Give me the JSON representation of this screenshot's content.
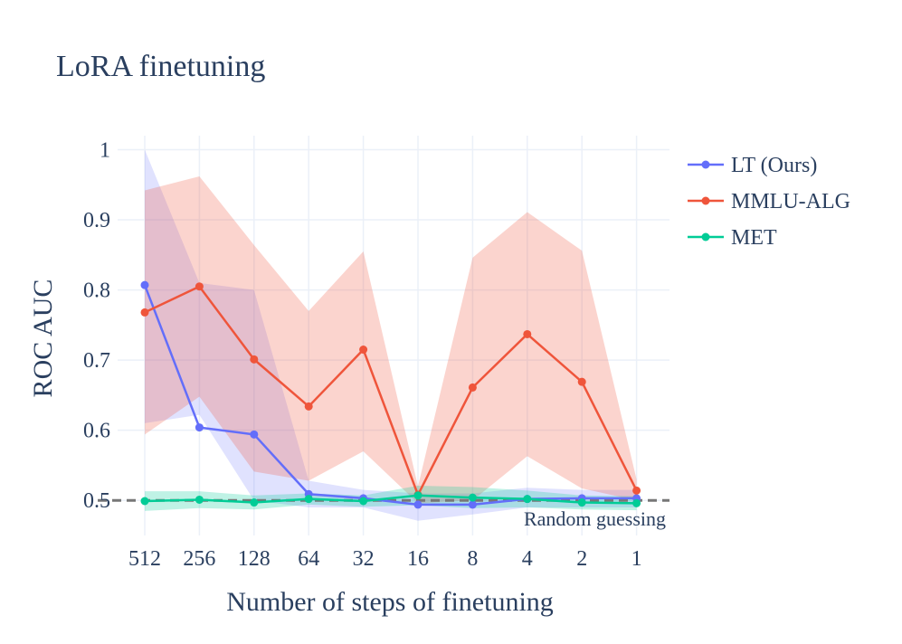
{
  "chart_data": {
    "type": "line",
    "title": "LoRA finetuning",
    "xlabel": "Number of steps of finetuning",
    "ylabel": "ROC AUC",
    "categories": [
      "512",
      "256",
      "128",
      "64",
      "32",
      "16",
      "8",
      "4",
      "2",
      "1"
    ],
    "ylim": [
      0.45,
      1.02
    ],
    "yticks": [
      0.5,
      0.6,
      0.7,
      0.8,
      0.9,
      1
    ],
    "ytick_labels": [
      "0.5",
      "0.6",
      "0.7",
      "0.8",
      "0.9",
      "1"
    ],
    "grid": true,
    "legend_position": "top-right",
    "series": [
      {
        "name": "LT (Ours)",
        "color": "#636efa",
        "values": [
          0.807,
          0.604,
          0.594,
          0.509,
          0.503,
          0.494,
          0.494,
          0.502,
          0.503,
          0.503
        ],
        "upper": [
          1.0,
          0.81,
          0.8,
          0.528,
          0.515,
          0.51,
          0.51,
          0.518,
          0.515,
          0.515
        ],
        "lower": [
          0.61,
          0.622,
          0.5,
          0.49,
          0.49,
          0.471,
          0.48,
          0.49,
          0.49,
          0.49
        ]
      },
      {
        "name": "MMLU-ALG",
        "color": "#ef553b",
        "values": [
          0.768,
          0.805,
          0.701,
          0.634,
          0.715,
          0.508,
          0.661,
          0.737,
          0.669,
          0.514
        ],
        "upper": [
          0.942,
          0.962,
          0.864,
          0.77,
          0.855,
          0.52,
          0.846,
          0.911,
          0.856,
          0.53
        ],
        "lower": [
          0.594,
          0.648,
          0.541,
          0.528,
          0.57,
          0.496,
          0.5,
          0.563,
          0.517,
          0.5
        ]
      },
      {
        "name": "MET",
        "color": "#00cc96",
        "values": [
          0.499,
          0.501,
          0.497,
          0.502,
          0.499,
          0.507,
          0.504,
          0.502,
          0.497,
          0.496
        ],
        "upper": [
          0.513,
          0.513,
          0.507,
          0.51,
          0.507,
          0.521,
          0.519,
          0.514,
          0.507,
          0.506
        ],
        "lower": [
          0.485,
          0.489,
          0.487,
          0.494,
          0.491,
          0.493,
          0.489,
          0.49,
          0.487,
          0.486
        ]
      }
    ],
    "reference_line": {
      "y": 0.5,
      "label": "Random guessing",
      "color": "#777777",
      "style": "dashed"
    }
  }
}
